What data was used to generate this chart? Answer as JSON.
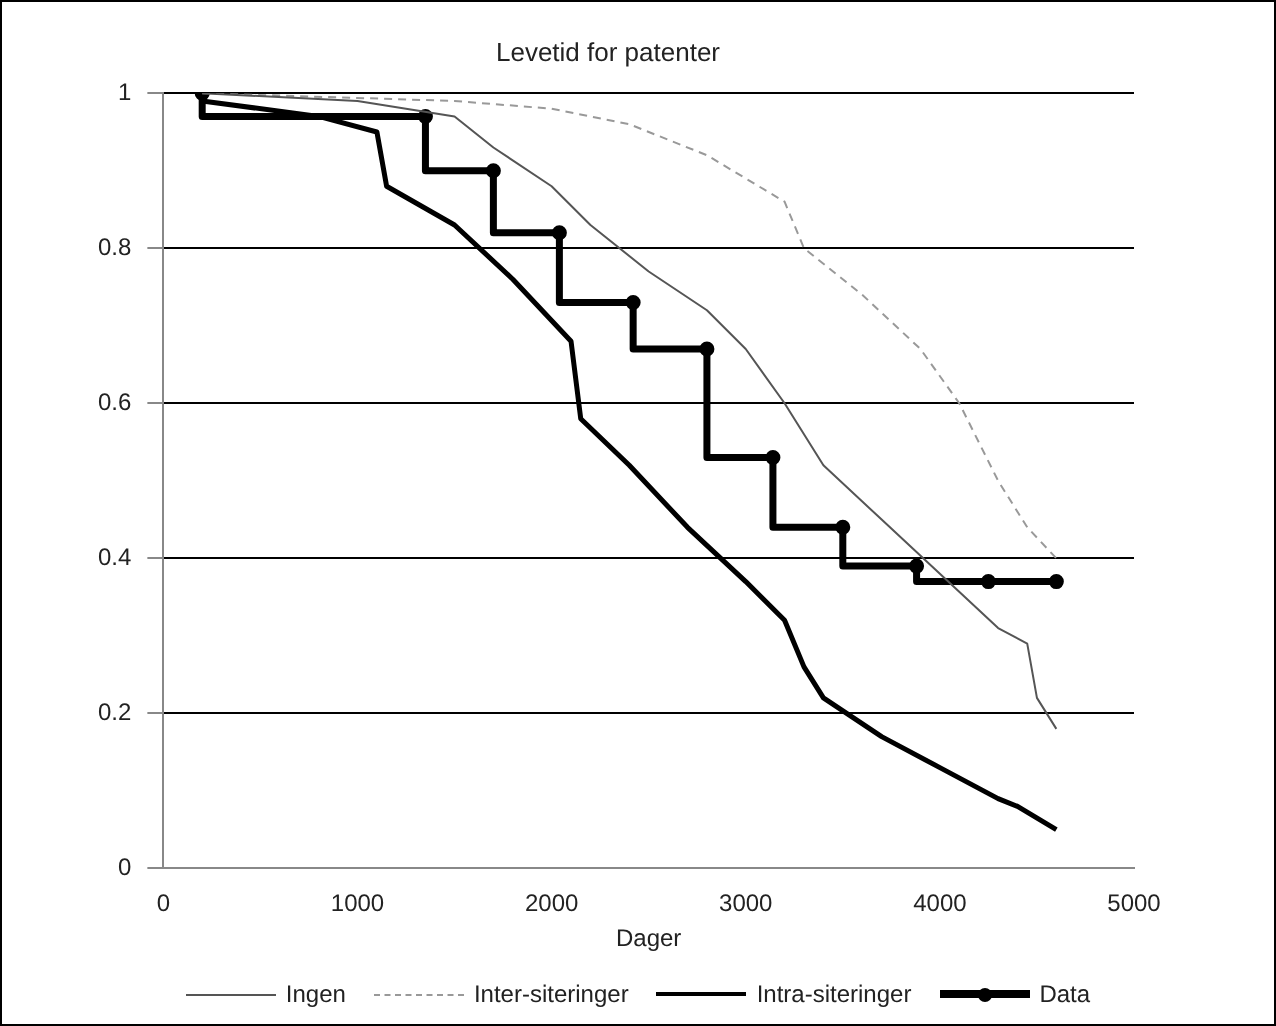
{
  "chart_data": {
    "type": "line",
    "title": "Levetid for patenter",
    "xlabel": "Dager",
    "xlim": [
      0,
      5000
    ],
    "xticks": [
      0,
      1000,
      2000,
      3000,
      4000,
      5000
    ],
    "ylim": [
      0,
      1
    ],
    "yticks": [
      0,
      0.2,
      0.4,
      0.6,
      0.8,
      1
    ],
    "grid": "y",
    "legend": "bottom",
    "marker": "none",
    "series": [
      {
        "name": "Ingen",
        "color": "#555555",
        "line_style": "solid",
        "x": [
          200,
          1000,
          1500,
          1700,
          2000,
          2200,
          2500,
          2800,
          3000,
          3200,
          3400,
          3700,
          4000,
          4300,
          4450,
          4500,
          4600
        ],
        "values": [
          1,
          0.99,
          0.97,
          0.93,
          0.88,
          0.83,
          0.77,
          0.72,
          0.67,
          0.6,
          0.52,
          0.45,
          0.38,
          0.31,
          0.29,
          0.22,
          0.18
        ]
      },
      {
        "name": "Inter-siteringer",
        "color": "#999999",
        "line_style": "dashed",
        "x": [
          200,
          1500,
          2000,
          2400,
          2800,
          3200,
          3300,
          3600,
          3900,
          4100,
          4300,
          4450,
          4600
        ],
        "values": [
          1,
          0.99,
          0.98,
          0.96,
          0.92,
          0.86,
          0.8,
          0.74,
          0.67,
          0.6,
          0.5,
          0.44,
          0.4
        ]
      },
      {
        "name": "Intra-siteringer",
        "color": "#000000",
        "line_style": "solid",
        "x": [
          200,
          800,
          1100,
          1150,
          1500,
          1800,
          2100,
          2150,
          2400,
          2700,
          3000,
          3200,
          3300,
          3400,
          3700,
          4000,
          4300,
          4400,
          4600
        ],
        "values": [
          0.99,
          0.97,
          0.95,
          0.88,
          0.83,
          0.76,
          0.68,
          0.58,
          0.52,
          0.44,
          0.37,
          0.32,
          0.26,
          0.22,
          0.17,
          0.13,
          0.09,
          0.08,
          0.05
        ]
      },
      {
        "name": "Data",
        "type": "step",
        "color": "#000000",
        "line_style": "solid",
        "marker": "circle",
        "x": [
          200,
          1350,
          1700,
          2040,
          2420,
          2800,
          3140,
          3500,
          3880,
          4250,
          4600
        ],
        "values": [
          1,
          0.97,
          0.9,
          0.82,
          0.73,
          0.67,
          0.53,
          0.44,
          0.39,
          0.37,
          0.37
        ]
      }
    ]
  }
}
